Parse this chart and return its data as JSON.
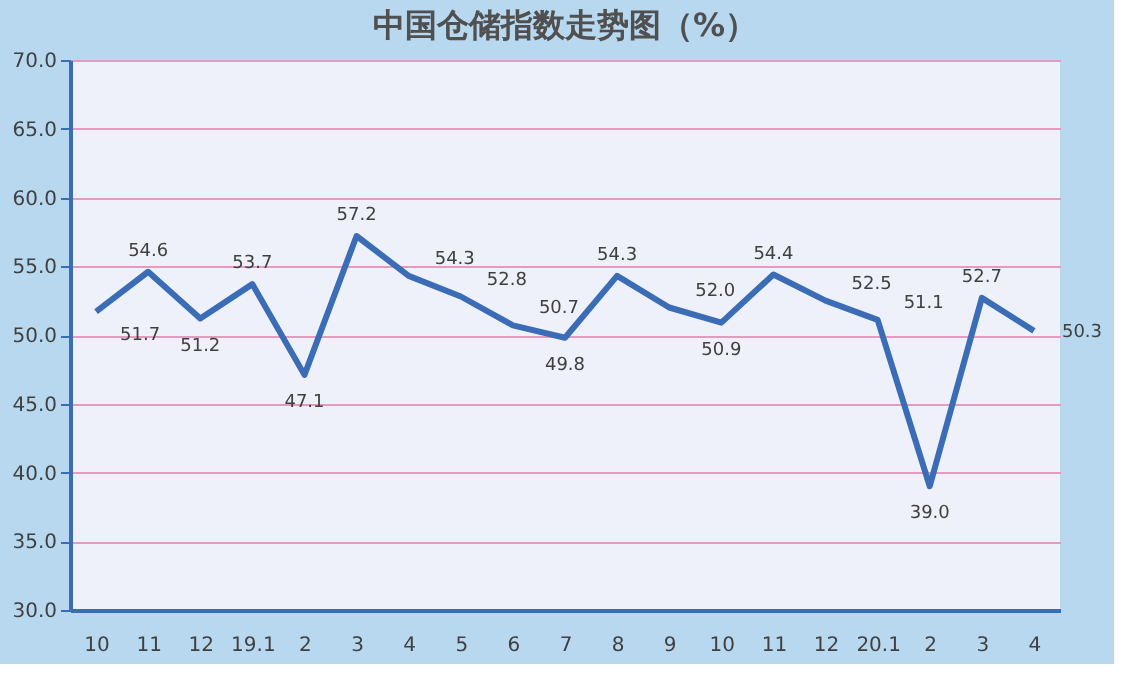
{
  "chart_data": {
    "type": "line",
    "title": "中国仓储指数走势图（%）",
    "categories": [
      "10",
      "11",
      "12",
      "19.1",
      "2",
      "3",
      "4",
      "5",
      "6",
      "7",
      "8",
      "9",
      "10",
      "11",
      "12",
      "20.1",
      "2",
      "3",
      "4"
    ],
    "series": [
      {
        "color": "#3a6db5",
        "values": [
          51.7,
          54.6,
          51.2,
          53.7,
          47.1,
          57.2,
          54.3,
          52.8,
          50.7,
          49.8,
          54.3,
          52.0,
          50.9,
          54.4,
          52.5,
          51.1,
          39.0,
          52.7,
          50.3
        ],
        "value_labels": [
          "51.7",
          "54.6",
          "51.2",
          "53.7",
          "47.1",
          "57.2",
          "54.3",
          "52.8",
          "50.7",
          "49.8",
          "54.3",
          "52.0",
          "50.9",
          "54.4",
          "52.5",
          "51.1",
          "39.0",
          "52.7",
          "50.3"
        ]
      }
    ],
    "ylim": [
      30,
      70
    ],
    "yticks": [
      {
        "value": 30,
        "label": "30.0"
      },
      {
        "value": 35,
        "label": "35.0"
      },
      {
        "value": 40,
        "label": "40.0"
      },
      {
        "value": 45,
        "label": "45.0"
      },
      {
        "value": 50,
        "label": "50.0"
      },
      {
        "value": 55,
        "label": "55.0"
      },
      {
        "value": 60,
        "label": "60.0"
      },
      {
        "value": 65,
        "label": "65.0"
      },
      {
        "value": 70,
        "label": "70.0"
      }
    ],
    "grid": "y",
    "marker": "none",
    "line_style": "solid"
  }
}
